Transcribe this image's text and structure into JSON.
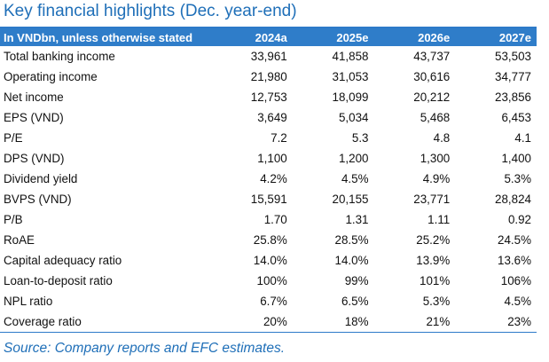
{
  "title": "Key financial highlights (Dec. year-end)",
  "table": {
    "header_label": "In VNDbn, unless otherwise stated",
    "columns": [
      "2024a",
      "2025e",
      "2026e",
      "2027e"
    ],
    "rows": [
      {
        "label": "Total banking income",
        "values": [
          "33,961",
          "41,858",
          "43,737",
          "53,503"
        ]
      },
      {
        "label": "Operating income",
        "values": [
          "21,980",
          "31,053",
          "30,616",
          "34,777"
        ]
      },
      {
        "label": "Net income",
        "values": [
          "12,753",
          "18,099",
          "20,212",
          "23,856"
        ]
      },
      {
        "label": "EPS (VND)",
        "values": [
          "3,649",
          "5,034",
          "5,468",
          "6,453"
        ]
      },
      {
        "label": "P/E",
        "values": [
          "7.2",
          "5.3",
          "4.8",
          "4.1"
        ]
      },
      {
        "label": "DPS (VND)",
        "values": [
          "1,100",
          "1,200",
          "1,300",
          "1,400"
        ]
      },
      {
        "label": "Dividend yield",
        "values": [
          "4.2%",
          "4.5%",
          "4.9%",
          "5.3%"
        ]
      },
      {
        "label": "BVPS (VND)",
        "values": [
          "15,591",
          "20,155",
          "23,771",
          "28,824"
        ]
      },
      {
        "label": "P/B",
        "values": [
          "1.70",
          "1.31",
          "1.11",
          "0.92"
        ]
      },
      {
        "label": "RoAE",
        "values": [
          "25.8%",
          "28.5%",
          "25.2%",
          "24.5%"
        ]
      },
      {
        "label": "Capital adequacy ratio",
        "values": [
          "14.0%",
          "14.0%",
          "13.9%",
          "13.6%"
        ]
      },
      {
        "label": "Loan-to-deposit ratio",
        "values": [
          "100%",
          "99%",
          "101%",
          "106%"
        ]
      },
      {
        "label": "NPL ratio",
        "values": [
          "6.7%",
          "6.5%",
          "5.3%",
          "4.5%"
        ]
      },
      {
        "label": "Coverage ratio",
        "values": [
          "20%",
          "18%",
          "21%",
          "23%"
        ]
      }
    ]
  },
  "source": "Source: Company reports and EFC estimates.",
  "colors": {
    "accent": "#2f7dc9",
    "title": "#1f6fb8"
  }
}
